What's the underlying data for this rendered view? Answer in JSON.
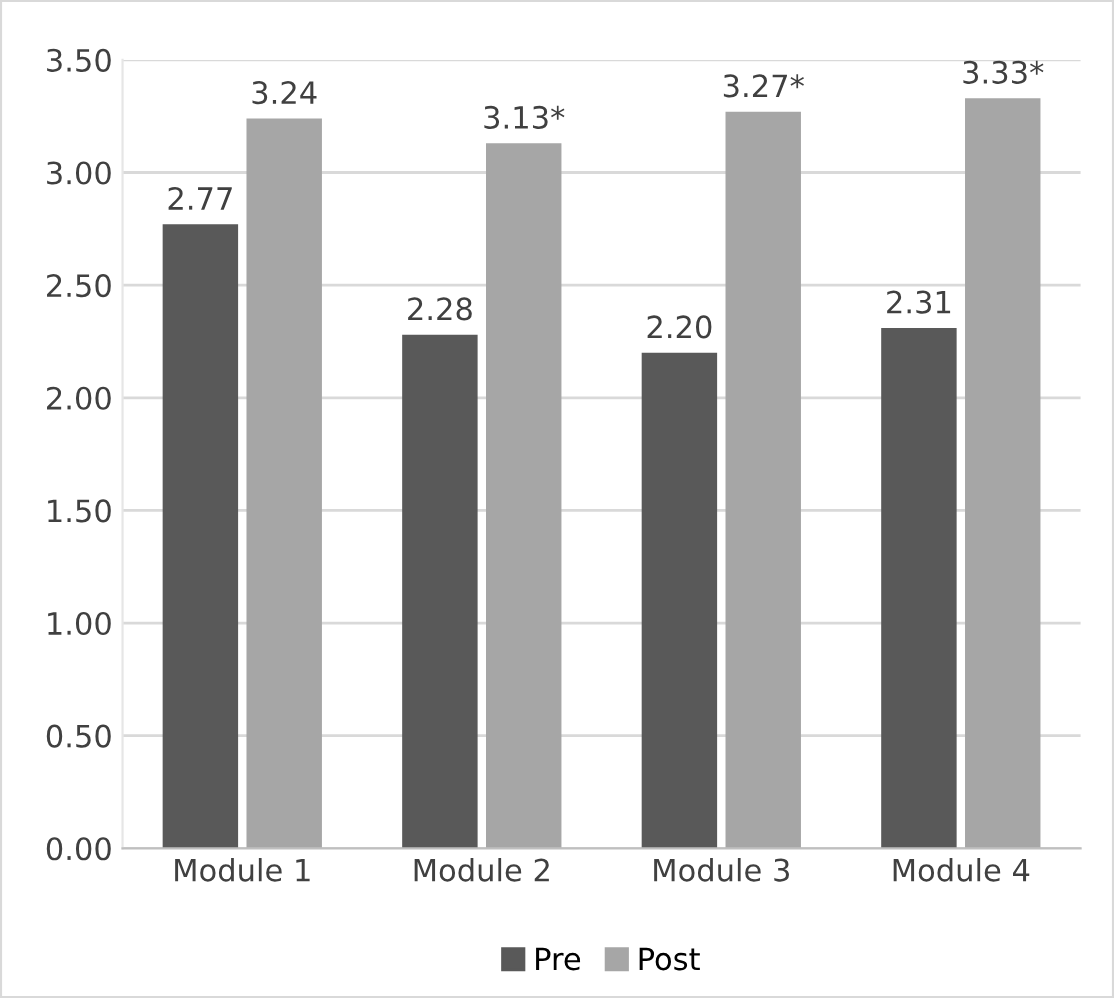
{
  "chart_data": {
    "type": "bar",
    "categories": [
      "Module 1",
      "Module 2",
      "Module 3",
      "Module 4"
    ],
    "series": [
      {
        "name": "Pre",
        "color": "#595959",
        "values": [
          2.77,
          2.28,
          2.2,
          2.31
        ],
        "value_labels": [
          "2.77",
          "2.28",
          "2.20",
          "2.31"
        ]
      },
      {
        "name": "Post",
        "color": "#a6a6a6",
        "values": [
          3.24,
          3.13,
          3.27,
          3.33
        ],
        "value_labels": [
          "3.24",
          "3.13*",
          "3.27*",
          "3.33*"
        ]
      }
    ],
    "ylim": [
      0,
      3.5
    ],
    "yticks": [
      {
        "value": 0,
        "label": "0.00"
      },
      {
        "value": 0.5,
        "label": "0.50"
      },
      {
        "value": 1,
        "label": "1.00"
      },
      {
        "value": 1.5,
        "label": "1.50"
      },
      {
        "value": 2,
        "label": "2.00"
      },
      {
        "value": 2.5,
        "label": "2.50"
      },
      {
        "value": 3,
        "label": "3.00"
      },
      {
        "value": 3.5,
        "label": "3.50"
      }
    ],
    "grid": "y",
    "legend": "bottom"
  }
}
